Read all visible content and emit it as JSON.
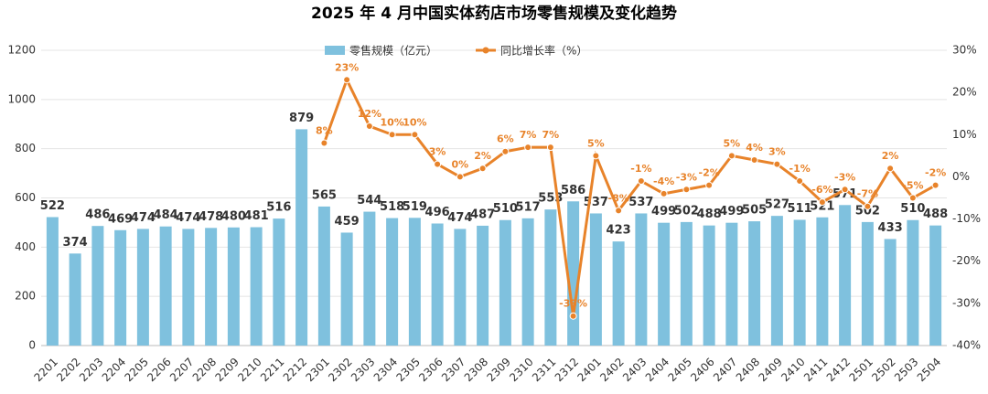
{
  "chart_data": {
    "type": "bar_line",
    "title": "2025 年 4 月中国实体药店市场零售规模及变化趋势",
    "categories": [
      "2201",
      "2202",
      "2203",
      "2204",
      "2205",
      "2206",
      "2207",
      "2208",
      "2209",
      "2210",
      "2211",
      "2212",
      "2301",
      "2302",
      "2303",
      "2304",
      "2305",
      "2306",
      "2307",
      "2308",
      "2309",
      "2310",
      "2311",
      "2312",
      "2401",
      "2402",
      "2403",
      "2404",
      "2405",
      "2406",
      "2407",
      "2408",
      "2409",
      "2410",
      "2411",
      "2412",
      "2501",
      "2502",
      "2503",
      "2504"
    ],
    "series": [
      {
        "name": "零售规模（亿元）",
        "type": "bar",
        "color": "#7fc1de",
        "values": [
          522,
          374,
          486,
          469,
          474,
          484,
          474,
          478,
          480,
          481,
          516,
          879,
          565,
          459,
          544,
          518,
          519,
          496,
          474,
          487,
          510,
          517,
          553,
          586,
          537,
          423,
          537,
          499,
          502,
          488,
          499,
          505,
          527,
          511,
          521,
          571,
          502,
          433,
          510,
          488
        ]
      },
      {
        "name": "同比增长率（%）",
        "type": "line",
        "axis": "y2",
        "color": "#e8832a",
        "values": [
          null,
          null,
          null,
          null,
          null,
          null,
          null,
          null,
          null,
          null,
          null,
          null,
          8,
          23,
          12,
          10,
          10,
          3,
          0,
          2,
          6,
          7,
          7,
          -33,
          5,
          -8,
          -1,
          -4,
          -3,
          -2,
          5,
          4,
          3,
          -1,
          -6,
          -3,
          -7,
          2,
          -5,
          -2
        ],
        "value_labels": [
          null,
          null,
          null,
          null,
          null,
          null,
          null,
          null,
          null,
          null,
          null,
          null,
          "8%",
          "23%",
          "12%",
          "10%",
          "10%",
          "3%",
          "0%",
          "2%",
          "6%",
          "7%",
          "7%",
          "-33%",
          "5%",
          "-8%",
          "-1%",
          "-4%",
          "-3%",
          "-2%",
          "5%",
          "4%",
          "3%",
          "-1%",
          "-6%",
          "-3%",
          "-7%",
          "2%",
          "-5%",
          "-2%"
        ]
      }
    ],
    "ylim": [
      0,
      1200
    ],
    "yticks": [
      0,
      200,
      400,
      600,
      800,
      1000,
      1200
    ],
    "y2lim": [
      -40,
      30
    ],
    "y2ticks": [
      {
        "value": -40,
        "label": "-40%"
      },
      {
        "value": -30,
        "label": "-30%"
      },
      {
        "value": -20,
        "label": "-20%"
      },
      {
        "value": -10,
        "label": "-10%"
      },
      {
        "value": 0,
        "label": "0%"
      },
      {
        "value": 10,
        "label": "10%"
      },
      {
        "value": 20,
        "label": "20%"
      },
      {
        "value": 30,
        "label": "30%"
      }
    ],
    "legend": "top"
  }
}
